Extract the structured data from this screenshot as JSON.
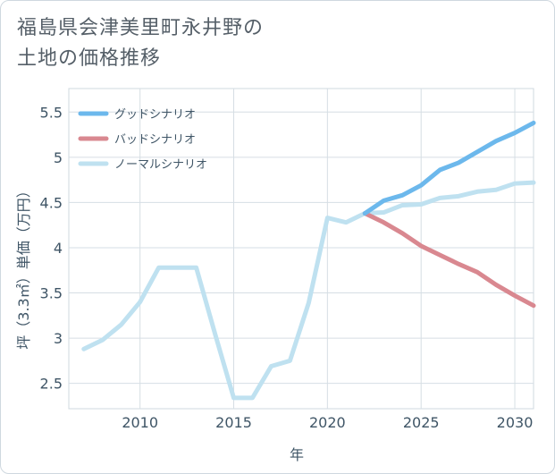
{
  "title_lines": [
    "福島県会津美里町永井野の",
    "土地の価格推移"
  ],
  "chart_data": {
    "type": "line",
    "title": "福島県会津美里町永井野の土地の価格推移",
    "xlabel": "年",
    "ylabel": "坪（3.3㎡）単価（万円）",
    "xlim": [
      2006.2,
      2031
    ],
    "ylim": [
      2.22,
      5.76
    ],
    "xticks": [
      2010,
      2015,
      2020,
      2025,
      2030
    ],
    "yticks": [
      2.5,
      3,
      3.5,
      4,
      4.5,
      5,
      5.5
    ],
    "ytick_labels": [
      "2.5",
      "3",
      "3.5",
      "4",
      "4.5",
      "5",
      "5.5"
    ],
    "grid": true,
    "legend_position": "top-left",
    "series": [
      {
        "name": "グッドシナリオ",
        "color": "#6cb8ec",
        "x": [
          2022,
          2023,
          2024,
          2025,
          2026,
          2027,
          2028,
          2029,
          2030,
          2031
        ],
        "y": [
          4.38,
          4.52,
          4.58,
          4.69,
          4.86,
          4.94,
          5.06,
          5.18,
          5.27,
          5.38
        ]
      },
      {
        "name": "バッドシナリオ",
        "color": "#d98890",
        "x": [
          2022,
          2023,
          2024,
          2025,
          2026,
          2027,
          2028,
          2029,
          2030,
          2031
        ],
        "y": [
          4.38,
          4.28,
          4.16,
          4.02,
          3.92,
          3.82,
          3.73,
          3.59,
          3.47,
          3.36
        ]
      },
      {
        "name": "ノーマルシナリオ",
        "color": "#bfe1f0",
        "x": [
          2007,
          2008,
          2009,
          2010,
          2011,
          2012,
          2013,
          2014,
          2015,
          2016,
          2017,
          2018,
          2019,
          2020,
          2021,
          2022,
          2023,
          2024,
          2025,
          2026,
          2027,
          2028,
          2029,
          2030,
          2031
        ],
        "y": [
          2.88,
          2.98,
          3.15,
          3.4,
          3.78,
          3.78,
          3.78,
          3.05,
          2.34,
          2.34,
          2.69,
          2.75,
          3.39,
          4.33,
          4.28,
          4.38,
          4.39,
          4.47,
          4.48,
          4.55,
          4.57,
          4.62,
          4.64,
          4.71,
          4.72
        ]
      }
    ]
  }
}
